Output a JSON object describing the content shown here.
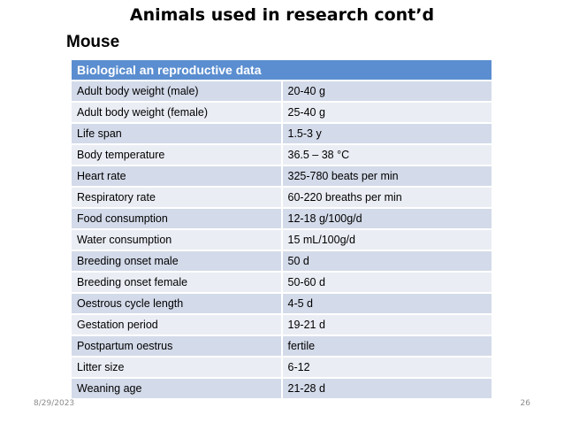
{
  "slide": {
    "title": "Animals used in research cont’d",
    "subtitle": "Mouse"
  },
  "table": {
    "header": "Biological an reproductive data",
    "rows": [
      {
        "param": "Adult body weight (male)",
        "value": "20-40 g"
      },
      {
        "param": "Adult body weight (female)",
        "value": "25-40 g"
      },
      {
        "param": "Life span",
        "value": "1.5-3 y"
      },
      {
        "param": "Body temperature",
        "value": "36.5 – 38 °C"
      },
      {
        "param": "Heart rate",
        "value": "325-780 beats per min"
      },
      {
        "param": "Respiratory rate",
        "value": "60-220 breaths per min"
      },
      {
        "param": "Food consumption",
        "value": "12-18 g/100g/d"
      },
      {
        "param": "Water consumption",
        "value": "15 mL/100g/d"
      },
      {
        "param": "Breeding onset male",
        "value": "50 d"
      },
      {
        "param": "Breeding onset female",
        "value": "50-60 d"
      },
      {
        "param": "Oestrous cycle length",
        "value": "4-5 d"
      },
      {
        "param": "Gestation period",
        "value": "19-21 d"
      },
      {
        "param": "Postpartum oestrus",
        "value": "fertile"
      },
      {
        "param": "Litter size",
        "value": "6-12"
      },
      {
        "param": "Weaning age",
        "value": "21-28 d"
      }
    ]
  },
  "footer": {
    "date": "8/29/2023",
    "page_number": "26"
  },
  "colors": {
    "header_bg": "#5b8ed0",
    "row_odd": "#d3dae9",
    "row_even": "#eaedf4"
  }
}
